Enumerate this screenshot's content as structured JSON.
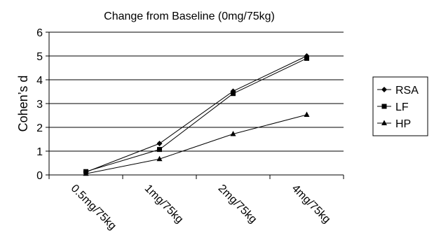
{
  "chart_data": {
    "type": "line",
    "title": "Change from Baseline (0mg/75kg)",
    "xlabel": "",
    "ylabel": "Cohen’s d",
    "categories": [
      "0.5mg/75kg",
      "1mg/75kg",
      "2mg/75kg",
      "4mg/75kg"
    ],
    "ylim": [
      0,
      6
    ],
    "yticks": [
      "0",
      "1",
      "2",
      "3",
      "4",
      "5",
      "6"
    ],
    "grid": true,
    "legend_position": "right",
    "series": [
      {
        "name": "RSA",
        "marker": "diamond",
        "values": [
          0.12,
          1.32,
          3.52,
          5.0
        ]
      },
      {
        "name": "LF",
        "marker": "square",
        "values": [
          0.14,
          1.07,
          3.42,
          4.9
        ]
      },
      {
        "name": "HP",
        "marker": "triangle",
        "values": [
          0.05,
          0.67,
          1.72,
          2.53
        ]
      }
    ],
    "colors": {
      "line": "#000000",
      "grid": "#000000",
      "background": "#ffffff"
    }
  }
}
